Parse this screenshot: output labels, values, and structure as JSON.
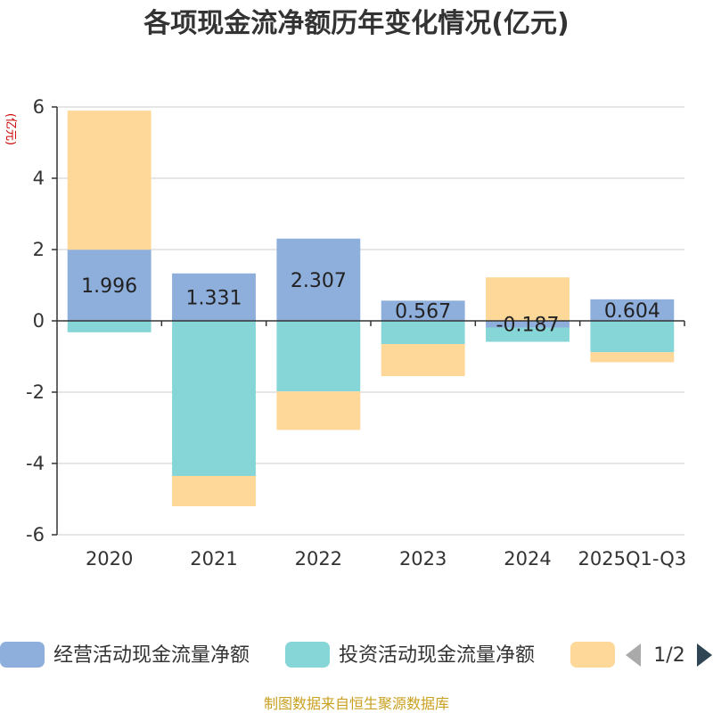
{
  "chart_data": {
    "type": "bar",
    "stacked": true,
    "title": "各项现金流净额历年变化情况(亿元)",
    "ylabel": "(亿元)",
    "xlabel": "",
    "categories": [
      "2020",
      "2021",
      "2022",
      "2023",
      "2024",
      "2025Q1-Q3"
    ],
    "ylim": [
      -6,
      6
    ],
    "yticks": [
      -6,
      -4,
      -2,
      0,
      2,
      4,
      6
    ],
    "grid": true,
    "series": [
      {
        "name": "经营活动现金流量净额",
        "color": "#8eaedc",
        "values": [
          1.996,
          1.331,
          2.307,
          0.567,
          -0.187,
          0.604
        ]
      },
      {
        "name": "投资活动现金流量净额",
        "color": "#86d5d7",
        "values": [
          -0.32,
          -4.35,
          -1.98,
          -0.65,
          -0.4,
          -0.88
        ]
      },
      {
        "name": "",
        "color": "#fdd898",
        "values": [
          3.9,
          -0.85,
          -1.08,
          -0.9,
          1.22,
          -0.28
        ]
      }
    ],
    "data_labels": [
      "1.996",
      "1.331",
      "2.307",
      "0.567",
      "-0.187",
      "0.604"
    ]
  },
  "legend": {
    "items": [
      {
        "label": "经营活动现金流量净额",
        "color": "#8eaedc"
      },
      {
        "label": "投资活动现金流量净额",
        "color": "#86d5d7"
      },
      {
        "label": "",
        "color": "#fdd898"
      }
    ],
    "page_indicator": "1/2"
  },
  "source": "制图数据来自恒生聚源数据库"
}
